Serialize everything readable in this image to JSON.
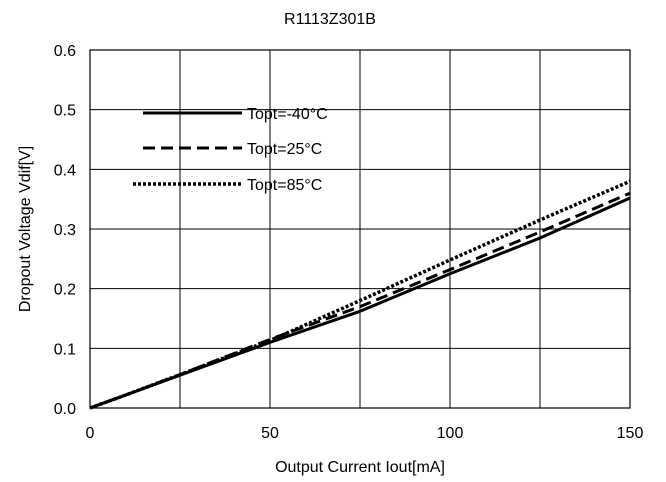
{
  "chart_data": {
    "type": "line",
    "title": "R1113Z301B",
    "xlabel": "Output Current Iout[mA]",
    "ylabel": "Dropout Voltage Vdif[V]",
    "xlim": [
      0,
      150
    ],
    "ylim": [
      0,
      0.6
    ],
    "xticks": [
      0,
      50,
      100,
      150
    ],
    "xtick_labels": [
      "0",
      "50",
      "100",
      "150"
    ],
    "yticks": [
      0,
      0.1,
      0.2,
      0.3,
      0.4,
      0.5,
      0.6
    ],
    "ytick_labels": [
      "0.0",
      "0.1",
      "0.2",
      "0.3",
      "0.4",
      "0.5",
      "0.6"
    ],
    "grid": true,
    "legend_position": "upper-left",
    "series": [
      {
        "name": "Topt=-40°C",
        "style": "solid",
        "x": [
          0,
          10,
          25,
          50,
          75,
          100,
          125,
          150
        ],
        "y": [
          0,
          0.022,
          0.055,
          0.11,
          0.162,
          0.225,
          0.285,
          0.352
        ]
      },
      {
        "name": "Topt=25°C",
        "style": "dashed",
        "x": [
          0,
          10,
          25,
          50,
          75,
          100,
          125,
          150
        ],
        "y": [
          0,
          0.022,
          0.056,
          0.115,
          0.17,
          0.232,
          0.295,
          0.36
        ]
      },
      {
        "name": "Topt=85°C",
        "style": "dotted",
        "x": [
          0,
          10,
          25,
          50,
          75,
          100,
          125,
          150
        ],
        "y": [
          0,
          0.022,
          0.056,
          0.113,
          0.18,
          0.248,
          0.315,
          0.38
        ]
      }
    ]
  }
}
